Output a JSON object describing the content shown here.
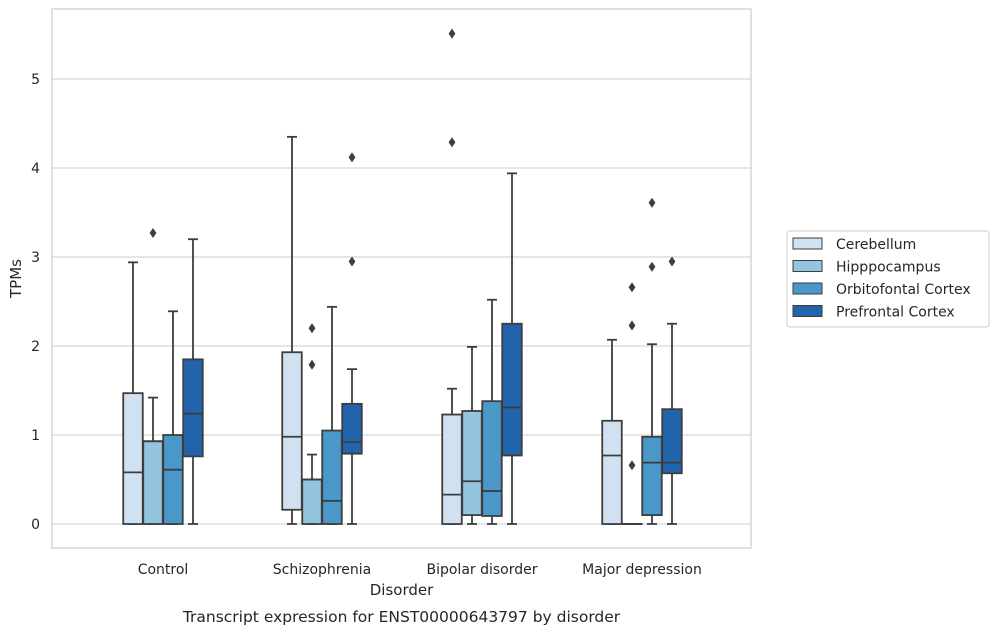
{
  "caption": "Transcript expression for ENST00000643797 by disorder",
  "chart_data": {
    "type": "boxplot",
    "xlabel": "Disorder",
    "ylabel": "TPMs",
    "categories": [
      "Control",
      "Schizophrenia",
      "Bipolar disorder",
      "Major depression"
    ],
    "ylim": [
      -0.27,
      5.78
    ],
    "yticks": [
      0,
      1,
      2,
      3,
      4,
      5
    ],
    "grid": "horizontal",
    "legend_position": "right",
    "series": [
      {
        "name": "Cerebellum",
        "color": "#d0e1f2",
        "boxes": [
          {
            "whisker_low": 0,
            "q1": 0,
            "median": 0.58,
            "q3": 1.47,
            "whisker_high": 2.94,
            "outliers": []
          },
          {
            "whisker_low": 0,
            "q1": 0.16,
            "median": 0.98,
            "q3": 1.93,
            "whisker_high": 4.35,
            "outliers": []
          },
          {
            "whisker_low": 0,
            "q1": 0,
            "median": 0.33,
            "q3": 1.23,
            "whisker_high": 1.52,
            "outliers": [
              4.29,
              5.51
            ]
          },
          {
            "whisker_low": 0,
            "q1": 0,
            "median": 0.77,
            "q3": 1.16,
            "whisker_high": 2.07,
            "outliers": []
          }
        ]
      },
      {
        "name": "Hipppocampus",
        "color": "#94c4df",
        "boxes": [
          {
            "whisker_low": 0,
            "q1": 0,
            "median": 0.93,
            "q3": 0.93,
            "whisker_high": 1.42,
            "outliers": [
              3.27
            ]
          },
          {
            "whisker_low": 0,
            "q1": 0,
            "median": 0.5,
            "q3": 0.5,
            "whisker_high": 0.78,
            "outliers": [
              1.79,
              2.2
            ]
          },
          {
            "whisker_low": 0,
            "q1": 0.1,
            "median": 0.48,
            "q3": 1.27,
            "whisker_high": 1.99,
            "outliers": []
          },
          {
            "whisker_low": 0,
            "q1": 0,
            "median": 0,
            "q3": 0,
            "whisker_high": 0,
            "outliers": [
              0.66,
              2.23,
              2.66
            ]
          }
        ]
      },
      {
        "name": "Orbitofontal Cortex",
        "color": "#4a98c9",
        "boxes": [
          {
            "whisker_low": 0,
            "q1": 0,
            "median": 0.61,
            "q3": 1.0,
            "whisker_high": 2.39,
            "outliers": []
          },
          {
            "whisker_low": 0,
            "q1": 0,
            "median": 0.26,
            "q3": 1.05,
            "whisker_high": 2.44,
            "outliers": []
          },
          {
            "whisker_low": 0,
            "q1": 0.09,
            "median": 0.37,
            "q3": 1.38,
            "whisker_high": 2.52,
            "outliers": []
          },
          {
            "whisker_low": 0,
            "q1": 0.1,
            "median": 0.69,
            "q3": 0.98,
            "whisker_high": 2.02,
            "outliers": [
              2.89,
              3.61
            ]
          }
        ]
      },
      {
        "name": "Prefrontal Cortex",
        "color": "#2164ab",
        "boxes": [
          {
            "whisker_low": 0,
            "q1": 0.76,
            "median": 1.24,
            "q3": 1.85,
            "whisker_high": 3.2,
            "outliers": []
          },
          {
            "whisker_low": 0,
            "q1": 0.79,
            "median": 0.92,
            "q3": 1.35,
            "whisker_high": 1.74,
            "outliers": [
              2.95,
              4.12
            ]
          },
          {
            "whisker_low": 0,
            "q1": 0.77,
            "median": 1.31,
            "q3": 2.25,
            "whisker_high": 3.94,
            "outliers": []
          },
          {
            "whisker_low": 0,
            "q1": 0.57,
            "median": 0.69,
            "q3": 1.29,
            "whisker_high": 2.25,
            "outliers": [
              2.95
            ]
          }
        ]
      }
    ]
  }
}
